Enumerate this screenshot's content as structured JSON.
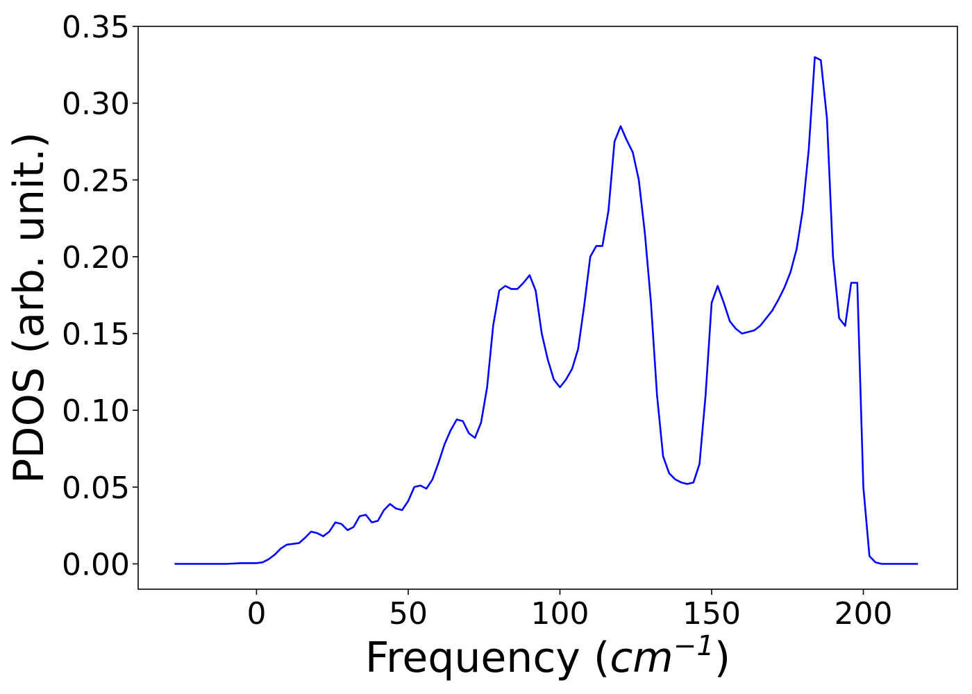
{
  "chart_data": {
    "type": "line",
    "title": "",
    "xlabel_text": "Frequency (",
    "xlabel_unit_base": "cm",
    "xlabel_unit_exp": "−1",
    "xlabel_close": ")",
    "ylabel": "PDOS (arb. unit.)",
    "xlim": [
      -39,
      231
    ],
    "ylim": [
      -0.0165,
      0.35
    ],
    "xticks": [
      0,
      50,
      100,
      150,
      200
    ],
    "xtick_labels": [
      "0",
      "50",
      "100",
      "150",
      "200"
    ],
    "yticks": [
      0.0,
      0.05,
      0.1,
      0.15,
      0.2,
      0.25,
      0.3,
      0.35
    ],
    "ytick_labels": [
      "0.00",
      "0.05",
      "0.10",
      "0.15",
      "0.20",
      "0.25",
      "0.30",
      "0.35"
    ],
    "grid": false,
    "series": [
      {
        "color": "#0000ff",
        "x": [
          -27,
          -20,
          -10,
          -5,
          0,
          2,
          4,
          6,
          8,
          10,
          12,
          14,
          16,
          18,
          20,
          22,
          24,
          26,
          28,
          30,
          32,
          34,
          36,
          38,
          40,
          42,
          44,
          46,
          48,
          50,
          52,
          54,
          56,
          58,
          60,
          62,
          64,
          66,
          68,
          70,
          72,
          74,
          76,
          78,
          80,
          82,
          84,
          86,
          88,
          90,
          92,
          94,
          96,
          98,
          100,
          102,
          104,
          106,
          108,
          110,
          112,
          114,
          116,
          118,
          120,
          122,
          124,
          126,
          128,
          130,
          132,
          134,
          136,
          138,
          140,
          142,
          144,
          146,
          148,
          150,
          152,
          154,
          156,
          158,
          160,
          162,
          164,
          166,
          168,
          170,
          172,
          174,
          176,
          178,
          180,
          182,
          184,
          186,
          188,
          190,
          192,
          194,
          196,
          198,
          200,
          202,
          204,
          206,
          210,
          218
        ],
        "y": [
          0.0,
          0.0,
          0.0,
          0.0005,
          0.0005,
          0.001,
          0.003,
          0.006,
          0.01,
          0.0125,
          0.013,
          0.0135,
          0.017,
          0.021,
          0.02,
          0.018,
          0.021,
          0.027,
          0.026,
          0.022,
          0.024,
          0.031,
          0.032,
          0.027,
          0.028,
          0.035,
          0.039,
          0.036,
          0.035,
          0.041,
          0.05,
          0.051,
          0.049,
          0.055,
          0.066,
          0.078,
          0.087,
          0.094,
          0.093,
          0.085,
          0.082,
          0.092,
          0.115,
          0.155,
          0.178,
          0.181,
          0.179,
          0.179,
          0.183,
          0.188,
          0.178,
          0.15,
          0.133,
          0.12,
          0.115,
          0.12,
          0.127,
          0.14,
          0.168,
          0.2,
          0.207,
          0.207,
          0.23,
          0.275,
          0.285,
          0.276,
          0.268,
          0.25,
          0.215,
          0.17,
          0.11,
          0.07,
          0.059,
          0.055,
          0.053,
          0.052,
          0.053,
          0.065,
          0.11,
          0.17,
          0.181,
          0.17,
          0.158,
          0.153,
          0.15,
          0.151,
          0.152,
          0.155,
          0.16,
          0.165,
          0.172,
          0.18,
          0.19,
          0.205,
          0.23,
          0.27,
          0.33,
          0.328,
          0.29,
          0.2,
          0.16,
          0.155,
          0.183,
          0.183,
          0.05,
          0.005,
          0.001,
          0.0,
          0.0,
          0.0
        ]
      }
    ]
  }
}
